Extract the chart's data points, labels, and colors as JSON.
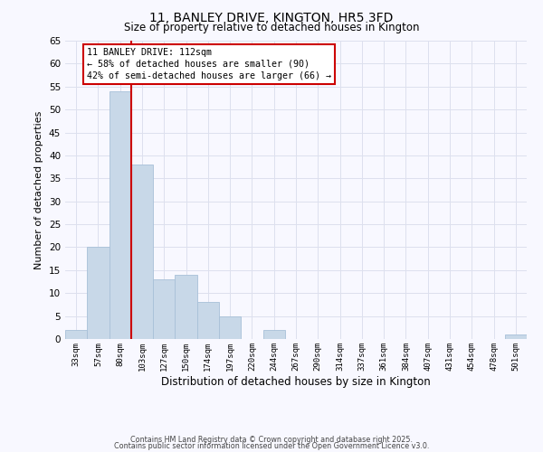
{
  "title": "11, BANLEY DRIVE, KINGTON, HR5 3FD",
  "subtitle": "Size of property relative to detached houses in Kington",
  "xlabel": "Distribution of detached houses by size in Kington",
  "ylabel": "Number of detached properties",
  "bin_labels": [
    "33sqm",
    "57sqm",
    "80sqm",
    "103sqm",
    "127sqm",
    "150sqm",
    "174sqm",
    "197sqm",
    "220sqm",
    "244sqm",
    "267sqm",
    "290sqm",
    "314sqm",
    "337sqm",
    "361sqm",
    "384sqm",
    "407sqm",
    "431sqm",
    "454sqm",
    "478sqm",
    "501sqm"
  ],
  "bin_values": [
    2,
    20,
    54,
    38,
    13,
    14,
    8,
    5,
    0,
    2,
    0,
    0,
    0,
    0,
    0,
    0,
    0,
    0,
    0,
    0,
    1
  ],
  "bar_color": "#c8d8e8",
  "bar_edgecolor": "#a8c0d8",
  "vline_color": "#cc0000",
  "vline_at_bin": 3,
  "annotation_line1": "11 BANLEY DRIVE: 112sqm",
  "annotation_line2": "← 58% of detached houses are smaller (90)",
  "annotation_line3": "42% of semi-detached houses are larger (66) →",
  "annotation_box_edgecolor": "#cc0000",
  "ylim": [
    0,
    65
  ],
  "yticks": [
    0,
    5,
    10,
    15,
    20,
    25,
    30,
    35,
    40,
    45,
    50,
    55,
    60,
    65
  ],
  "background_color": "#f8f8ff",
  "grid_color": "#dde0ee",
  "footer_line1": "Contains HM Land Registry data © Crown copyright and database right 2025.",
  "footer_line2": "Contains public sector information licensed under the Open Government Licence v3.0."
}
